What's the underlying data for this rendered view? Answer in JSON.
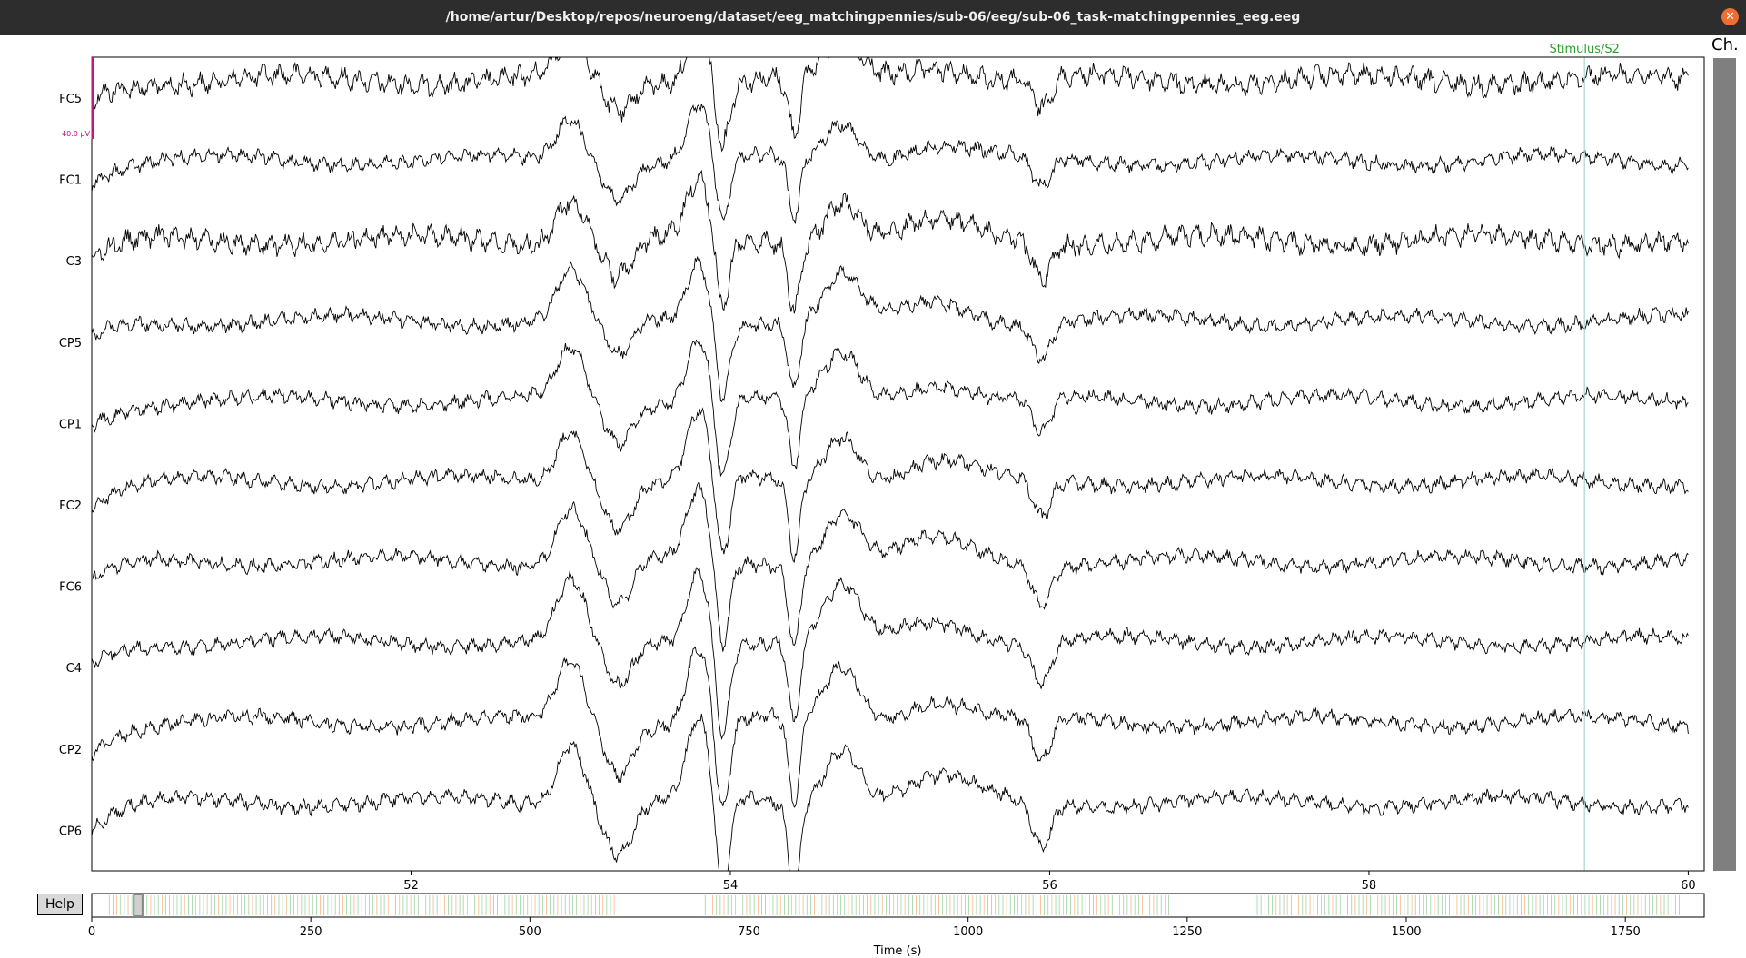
{
  "window": {
    "title": "/home/artur/Desktop/repos/neuroeng/dataset/eeg_matchingpennies/sub-06/eeg/sub-06_task-matchingpennies_eeg.eeg",
    "close_icon": "close-icon"
  },
  "sidebar": {
    "ch_label": "Ch."
  },
  "help": {
    "label": "Help"
  },
  "scale_bar": {
    "label": "40.0 µV",
    "color": "#c2187a"
  },
  "annotation": {
    "label": "Stimulus/S2",
    "time": 59.35,
    "color": "#2ca02c"
  },
  "colors": {
    "trace": "#000000",
    "annotation_line": "#a8d8d0",
    "overview_orange": "#f5b98a",
    "overview_green": "#9fd2a4"
  },
  "chart_data": {
    "type": "line",
    "title": "",
    "xlabel": "",
    "ylabel": "",
    "xlim": [
      50.0,
      60.1
    ],
    "x_ticks": [
      52,
      54,
      56,
      58,
      60
    ],
    "channels": [
      "FC5",
      "FC1",
      "C3",
      "CP5",
      "CP1",
      "FC2",
      "FC6",
      "C4",
      "CP2",
      "CP6"
    ],
    "sampling_rate_hz": 100
  },
  "overview": {
    "xlabel": "Time (s)",
    "xlim": [
      0,
      1840
    ],
    "ticks": [
      0,
      250,
      500,
      750,
      1000,
      1250,
      1500,
      1750
    ],
    "view_start": 50,
    "view_end": 60,
    "annotation_segments": [
      [
        20,
        600
      ],
      [
        700,
        1230
      ],
      [
        1330,
        1815
      ]
    ]
  }
}
